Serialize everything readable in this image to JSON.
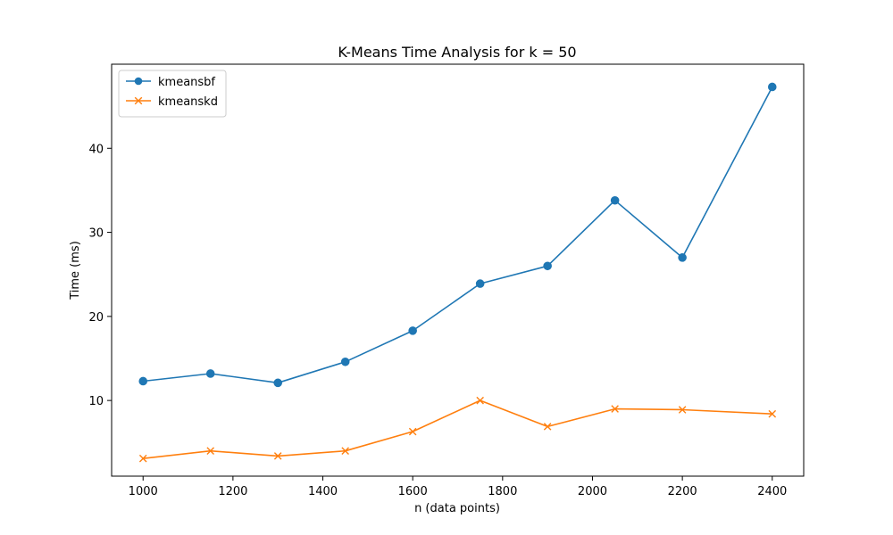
{
  "chart_data": {
    "type": "line",
    "title": "K-Means Time Analysis for k = 50",
    "xlabel": "n (data points)",
    "ylabel": "Time (ms)",
    "xlim": [
      930,
      2470
    ],
    "ylim": [
      1.0,
      50.0
    ],
    "x_ticks": [
      1000,
      1200,
      1400,
      1600,
      1800,
      2000,
      2200,
      2400
    ],
    "y_ticks": [
      10,
      20,
      30,
      40
    ],
    "grid": false,
    "legend_position": "top-left",
    "x": [
      1000,
      1150,
      1300,
      1450,
      1600,
      1750,
      1900,
      2050,
      2200,
      2400
    ],
    "series": [
      {
        "name": "kmeansbf",
        "color": "#1f77b4",
        "marker": "circle",
        "values": [
          12.3,
          13.2,
          12.1,
          14.6,
          18.3,
          23.9,
          26.0,
          33.8,
          27.0,
          47.3
        ]
      },
      {
        "name": "kmeanskd",
        "color": "#ff7f0e",
        "marker": "x",
        "values": [
          3.1,
          4.0,
          3.4,
          4.0,
          6.3,
          10.0,
          6.9,
          9.0,
          8.9,
          8.4
        ]
      }
    ]
  }
}
